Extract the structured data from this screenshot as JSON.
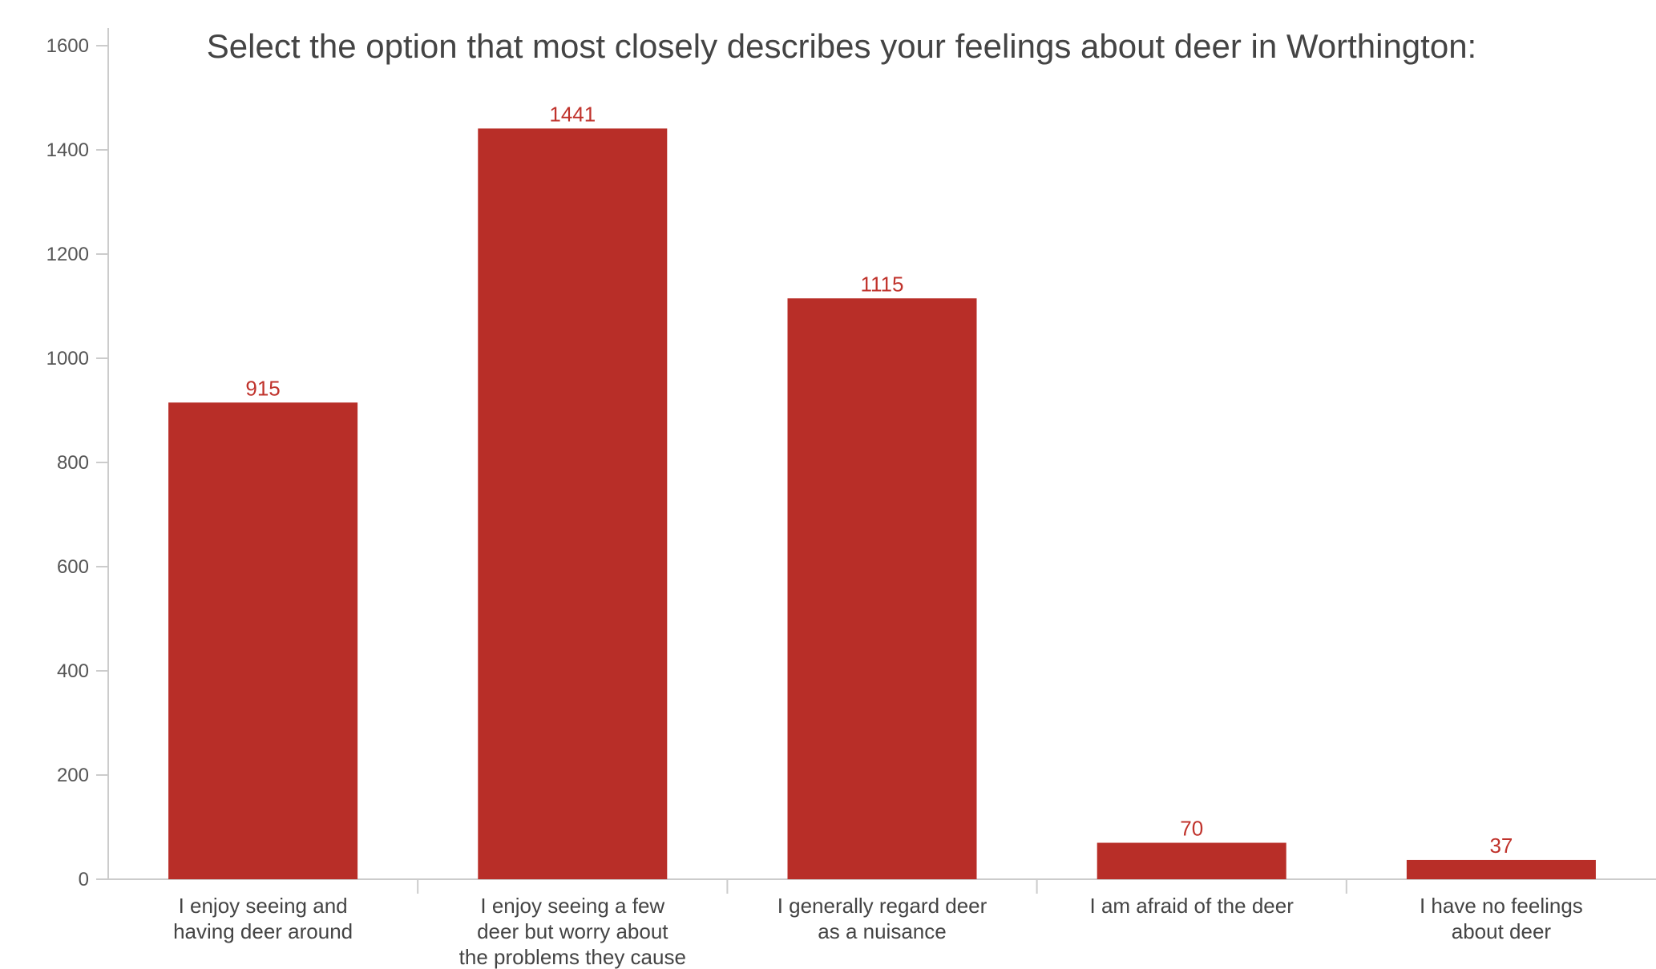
{
  "chart_data": {
    "type": "bar",
    "title": "Select the option that most closely describes your feelings about deer in Worthington:",
    "xlabel": "",
    "ylabel": "",
    "categories": [
      [
        "I enjoy seeing and",
        "having deer around"
      ],
      [
        "I enjoy seeing a few",
        "deer but worry about",
        "the problems they cause"
      ],
      [
        "I generally regard deer",
        "as a nuisance"
      ],
      [
        "I am afraid of the deer"
      ],
      [
        "I have no feelings",
        "about deer"
      ]
    ],
    "values": [
      915,
      1441,
      1115,
      70,
      37
    ],
    "data_labels": [
      "915",
      "1441",
      "1115",
      "70",
      "37"
    ],
    "yticks": [
      "0",
      "200",
      "400",
      "600",
      "800",
      "1000",
      "1200",
      "1400",
      "1600"
    ],
    "ylim": [
      0,
      1600
    ],
    "grid": false,
    "legend": "none",
    "colors": {
      "bar": "#b82e28",
      "data_label": "#c0332c",
      "axis": "#cccccc",
      "title": "#444444",
      "tick_text": "#555555"
    }
  }
}
